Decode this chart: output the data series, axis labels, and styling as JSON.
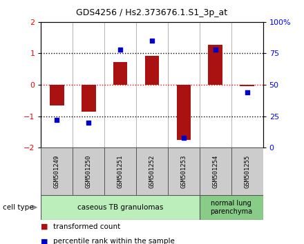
{
  "title": "GDS4256 / Hs2.373676.1.S1_3p_at",
  "samples": [
    "GSM501249",
    "GSM501250",
    "GSM501251",
    "GSM501252",
    "GSM501253",
    "GSM501254",
    "GSM501255"
  ],
  "transformed_count": [
    -0.65,
    -0.85,
    0.72,
    0.93,
    -1.75,
    1.28,
    -0.05
  ],
  "percentile_rank": [
    22,
    20,
    78,
    85,
    8,
    78,
    44
  ],
  "ylim_left": [
    -2,
    2
  ],
  "ylim_right": [
    0,
    100
  ],
  "yticks_left": [
    -2,
    -1,
    0,
    1,
    2
  ],
  "yticks_right": [
    0,
    25,
    50,
    75,
    100
  ],
  "ytick_labels_right": [
    "0",
    "25",
    "50",
    "75",
    "100%"
  ],
  "bar_color": "#aa1111",
  "dot_color": "#0000cc",
  "group1_label": "caseous TB granulomas",
  "group1_color": "#bbeebb",
  "group1_count": 5,
  "group2_label": "normal lung\nparenchyma",
  "group2_color": "#88cc88",
  "group2_count": 2,
  "cell_type_label": "cell type",
  "legend1_color": "#aa1111",
  "legend1_label": "transformed count",
  "legend2_color": "#0000cc",
  "legend2_label": "percentile rank within the sample",
  "sample_bg": "#cccccc",
  "plot_bg": "#ffffff"
}
